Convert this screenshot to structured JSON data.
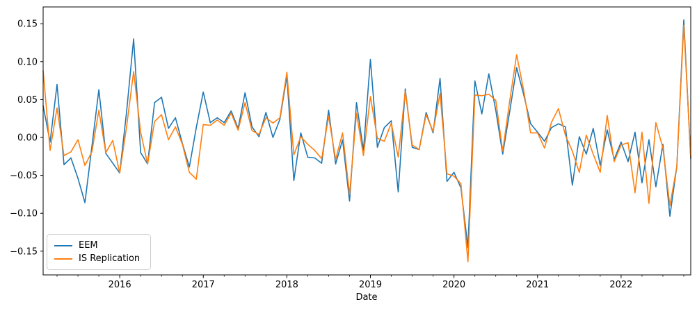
{
  "figure": {
    "background": "#ffffff",
    "xlabel": "Date",
    "legend": {
      "entries": [
        {
          "label": "EEM",
          "color": "#1f77b4"
        },
        {
          "label": "IS Replication",
          "color": "#ff7f0e"
        }
      ]
    }
  },
  "chart_data": {
    "type": "line",
    "title": "",
    "xlabel": "Date",
    "ylabel": "",
    "grid": false,
    "legend_position": "lower left",
    "ylim": [
      -0.1813,
      0.1722
    ],
    "y_ticks": [
      0.15,
      0.1,
      0.05,
      0.0,
      -0.05,
      -0.1,
      -0.15
    ],
    "x_tick_years": [
      2016,
      2017,
      2018,
      2019,
      2020,
      2021,
      2022
    ],
    "x": [
      "2015-02",
      "2015-03",
      "2015-04",
      "2015-05",
      "2015-06",
      "2015-07",
      "2015-08",
      "2015-09",
      "2015-10",
      "2015-11",
      "2015-12",
      "2016-01",
      "2016-02",
      "2016-03",
      "2016-04",
      "2016-05",
      "2016-06",
      "2016-07",
      "2016-08",
      "2016-09",
      "2016-10",
      "2016-11",
      "2016-12",
      "2017-01",
      "2017-02",
      "2017-03",
      "2017-04",
      "2017-05",
      "2017-06",
      "2017-07",
      "2017-08",
      "2017-09",
      "2017-10",
      "2017-11",
      "2017-12",
      "2018-01",
      "2018-02",
      "2018-03",
      "2018-04",
      "2018-05",
      "2018-06",
      "2018-07",
      "2018-08",
      "2018-09",
      "2018-10",
      "2018-11",
      "2018-12",
      "2019-01",
      "2019-02",
      "2019-03",
      "2019-04",
      "2019-05",
      "2019-06",
      "2019-07",
      "2019-08",
      "2019-09",
      "2019-10",
      "2019-11",
      "2019-12",
      "2020-01",
      "2020-02",
      "2020-03",
      "2020-04",
      "2020-05",
      "2020-06",
      "2020-07",
      "2020-08",
      "2020-09",
      "2020-10",
      "2020-11",
      "2020-12",
      "2021-01",
      "2021-02",
      "2021-03",
      "2021-04",
      "2021-05",
      "2021-06",
      "2021-07",
      "2021-08",
      "2021-09",
      "2021-10",
      "2021-11",
      "2021-12",
      "2022-01",
      "2022-02",
      "2022-03",
      "2022-04",
      "2022-05",
      "2022-06",
      "2022-07",
      "2022-08",
      "2022-09",
      "2022-10",
      "2022-11"
    ],
    "series": [
      {
        "name": "EEM",
        "color": "#1f77b4",
        "values": [
          0.042,
          -0.006,
          0.07,
          -0.036,
          -0.027,
          -0.054,
          -0.086,
          -0.012,
          0.063,
          -0.021,
          -0.034,
          -0.047,
          0.035,
          0.13,
          -0.02,
          -0.035,
          0.046,
          0.053,
          0.012,
          0.026,
          -0.008,
          -0.039,
          0.013,
          0.06,
          0.0195,
          0.026,
          0.0195,
          0.035,
          0.012,
          0.059,
          0.014,
          0.001,
          0.033,
          0.0,
          0.024,
          0.081,
          -0.057,
          0.006,
          -0.026,
          -0.027,
          -0.034,
          0.036,
          -0.035,
          -0.003,
          -0.084,
          0.046,
          -0.017,
          0.103,
          -0.013,
          0.013,
          0.022,
          -0.072,
          0.064,
          -0.013,
          -0.016,
          0.033,
          0.006,
          0.078,
          -0.058,
          -0.046,
          -0.0665,
          -0.145,
          0.0745,
          0.031,
          0.084,
          0.036,
          -0.022,
          0.034,
          0.092,
          0.057,
          0.018,
          0.007,
          -0.005,
          0.013,
          0.018,
          0.014,
          -0.063,
          0.001,
          -0.022,
          0.012,
          -0.037,
          0.01,
          -0.029,
          -0.006,
          -0.032,
          0.007,
          -0.06,
          -0.003,
          -0.065,
          -0.009,
          -0.104,
          -0.038,
          0.155,
          -0.028
        ]
      },
      {
        "name": "IS Replication",
        "color": "#ff7f0e",
        "values": [
          0.088,
          -0.017,
          0.039,
          -0.024,
          -0.019,
          -0.003,
          -0.037,
          -0.019,
          0.036,
          -0.02,
          -0.004,
          -0.047,
          0.015,
          0.087,
          0.007,
          -0.035,
          0.021,
          0.03,
          -0.003,
          0.014,
          -0.009,
          -0.046,
          -0.055,
          0.017,
          0.016,
          0.023,
          0.016,
          0.032,
          0.0095,
          0.046,
          0.009,
          0.004,
          0.026,
          0.019,
          0.026,
          0.086,
          -0.023,
          0.001,
          -0.009,
          -0.017,
          -0.028,
          0.028,
          -0.029,
          0.006,
          -0.075,
          0.032,
          -0.024,
          0.054,
          -0.001,
          -0.005,
          0.019,
          -0.026,
          0.061,
          -0.01,
          -0.016,
          0.03,
          0.008,
          0.058,
          -0.048,
          -0.051,
          -0.061,
          -0.164,
          0.056,
          0.055,
          0.057,
          0.049,
          -0.018,
          0.048,
          0.109,
          0.063,
          0.006,
          0.006,
          -0.014,
          0.02,
          0.038,
          0.003,
          -0.018,
          -0.046,
          0.003,
          -0.022,
          -0.046,
          0.029,
          -0.032,
          -0.01,
          -0.007,
          -0.073,
          0.007,
          -0.087,
          0.0195,
          -0.014,
          -0.09,
          -0.0385,
          0.148,
          -0.026
        ]
      }
    ]
  }
}
